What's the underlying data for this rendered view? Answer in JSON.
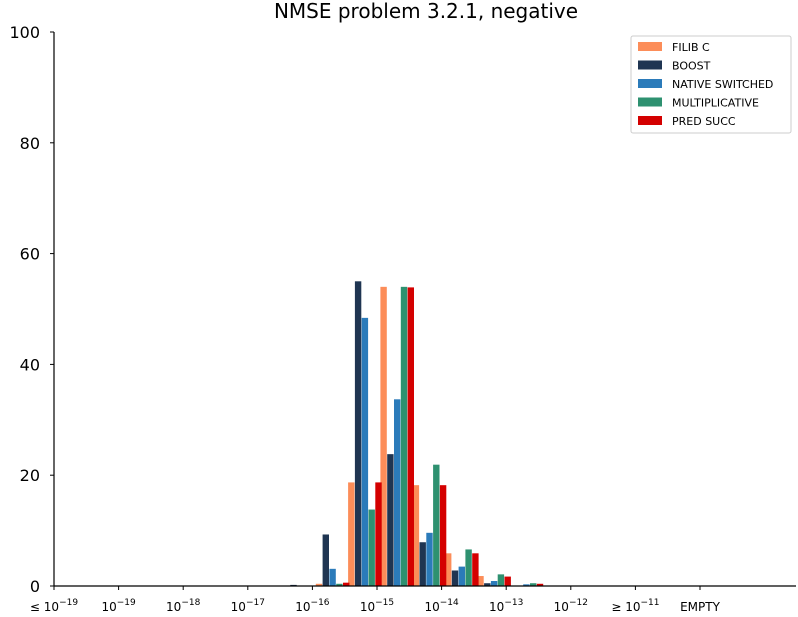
{
  "chart_data": {
    "type": "bar",
    "title": "NMSE problem 3.2.1, negative",
    "xlabel": "",
    "ylabel": "",
    "ylim": [
      0,
      100
    ],
    "yticks": [
      0,
      20,
      40,
      60,
      80,
      100
    ],
    "grid": false,
    "legend_position": "top-right",
    "x_tick_labels": [
      {
        "label": "≤ 10",
        "exp": "−19"
      },
      {
        "label": "10",
        "exp": "−19"
      },
      {
        "label": "10",
        "exp": "−18"
      },
      {
        "label": "10",
        "exp": "−17"
      },
      {
        "label": "10",
        "exp": "−16"
      },
      {
        "label": "10",
        "exp": "−15"
      },
      {
        "label": "10",
        "exp": "−14"
      },
      {
        "label": "10",
        "exp": "−13"
      },
      {
        "label": "10",
        "exp": "−12"
      },
      {
        "label": "≥ 10",
        "exp": "−11"
      },
      {
        "label": "EMPTY",
        "exp": ""
      }
    ],
    "bins": [
      "1e-16.5",
      "1e-16",
      "1e-15.5",
      "1e-15",
      "1e-14.5",
      "1e-14",
      "1e-13.5",
      "1e-13",
      "1e-12.5"
    ],
    "series": [
      {
        "name": "FILIB C",
        "color": "#fc8d59",
        "values": [
          0,
          0.4,
          18.7,
          54,
          18.2,
          5.9,
          1.8,
          0,
          0
        ]
      },
      {
        "name": "BOOST",
        "color": "#1f3552",
        "values": [
          0.2,
          9.3,
          55,
          23.8,
          7.9,
          2.8,
          0.5,
          0,
          0
        ]
      },
      {
        "name": "NATIVE SWITCHED",
        "color": "#2b7bba",
        "values": [
          0,
          3.1,
          48.4,
          33.7,
          9.6,
          3.5,
          0.9,
          0.3,
          0
        ]
      },
      {
        "name": "MULTIPLICATIVE",
        "color": "#2e9170",
        "values": [
          0,
          0.4,
          13.8,
          54,
          21.9,
          6.6,
          2.1,
          0.5,
          0
        ]
      },
      {
        "name": "PRED SUCC",
        "color": "#d40000",
        "values": [
          0,
          0.6,
          18.7,
          53.9,
          18.2,
          5.9,
          1.7,
          0.4,
          0
        ]
      }
    ]
  }
}
